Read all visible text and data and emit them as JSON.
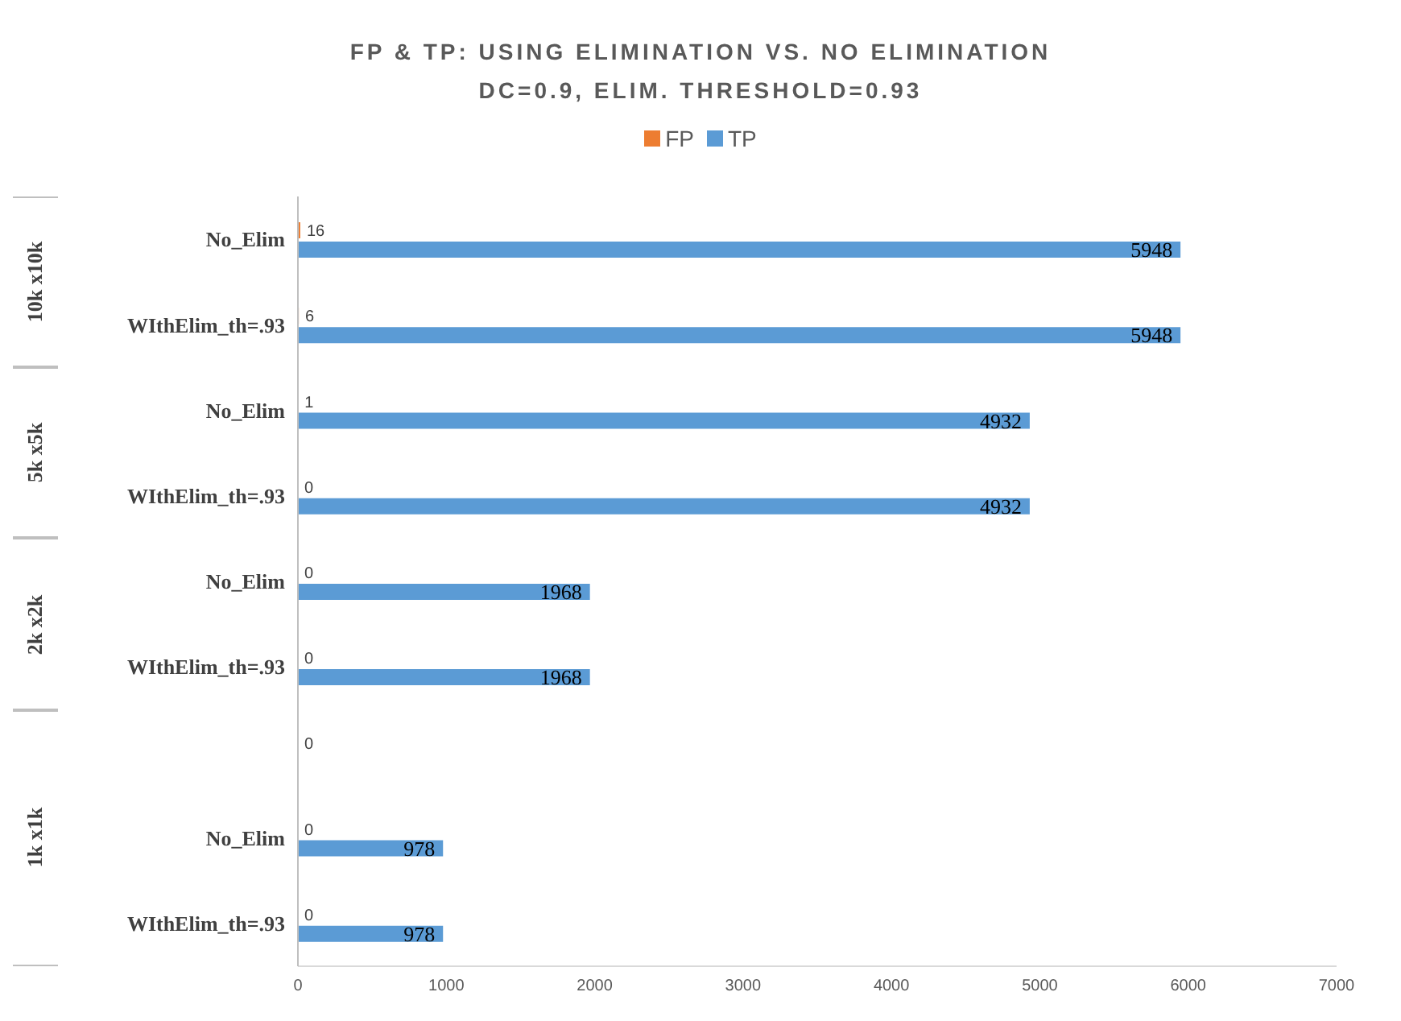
{
  "chart_data": {
    "type": "bar",
    "orientation": "horizontal",
    "title": "FP & TP: USING ELIMINATION VS. NO ELIMINATION",
    "subtitle": "DC=0.9, ELIM. THRESHOLD=0.93",
    "categories": [
      "No_Elim",
      "WIthElim_th=.93",
      "No_Elim",
      "WIthElim_th=.93",
      "No_Elim",
      "WIthElim_th=.93",
      null,
      "No_Elim",
      "WIthElim_th=.93"
    ],
    "annotations": [
      "10k x10k",
      "5k x5k",
      "2k x2k",
      "1k x1k"
    ],
    "series": [
      {
        "name": "FP",
        "color": "#ed7d31",
        "values": [
          16,
          6,
          1,
          0,
          0,
          0,
          0,
          0,
          0
        ]
      },
      {
        "name": "TP",
        "color": "#5b9bd5",
        "values": [
          5948,
          5948,
          4932,
          4932,
          1968,
          1968,
          null,
          978,
          978
        ]
      }
    ],
    "xlim": [
      0,
      7000
    ],
    "xticks": [
      0,
      1000,
      2000,
      3000,
      4000,
      5000,
      6000,
      7000
    ],
    "legend": "top",
    "data_labels": true
  }
}
